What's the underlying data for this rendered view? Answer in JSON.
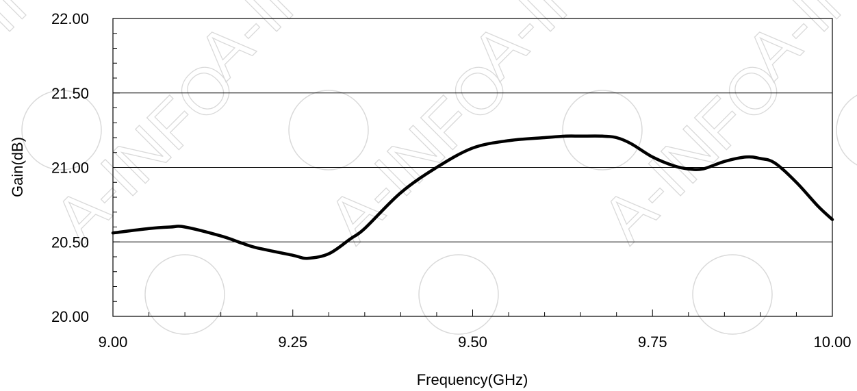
{
  "chart_data": {
    "type": "line",
    "xlabel": "Frequency(GHz)",
    "ylabel": "Gain(dB)",
    "xlim": [
      9.0,
      10.0
    ],
    "ylim": [
      20.0,
      22.0
    ],
    "x_ticks": [
      "9.00",
      "9.25",
      "9.50",
      "9.75",
      "10.00"
    ],
    "y_ticks": [
      "20.00",
      "20.50",
      "21.00",
      "21.50",
      "22.00"
    ],
    "grid": "horizontal major gridlines",
    "legend": "none",
    "series": [
      {
        "color": "#000000",
        "x": [
          9.0,
          9.05,
          9.08,
          9.1,
          9.15,
          9.18,
          9.2,
          9.25,
          9.27,
          9.3,
          9.33,
          9.35,
          9.4,
          9.45,
          9.5,
          9.55,
          9.6,
          9.63,
          9.65,
          9.68,
          9.7,
          9.72,
          9.75,
          9.78,
          9.8,
          9.82,
          9.85,
          9.88,
          9.9,
          9.92,
          9.95,
          9.98,
          10.0
        ],
        "y": [
          20.56,
          20.59,
          20.6,
          20.6,
          20.54,
          20.49,
          20.46,
          20.41,
          20.39,
          20.42,
          20.52,
          20.59,
          20.83,
          21.0,
          21.13,
          21.18,
          21.2,
          21.21,
          21.21,
          21.21,
          21.2,
          21.16,
          21.07,
          21.01,
          20.99,
          20.99,
          21.04,
          21.07,
          21.06,
          21.03,
          20.9,
          20.74,
          20.65
        ]
      }
    ]
  },
  "watermark": "A-INFO"
}
